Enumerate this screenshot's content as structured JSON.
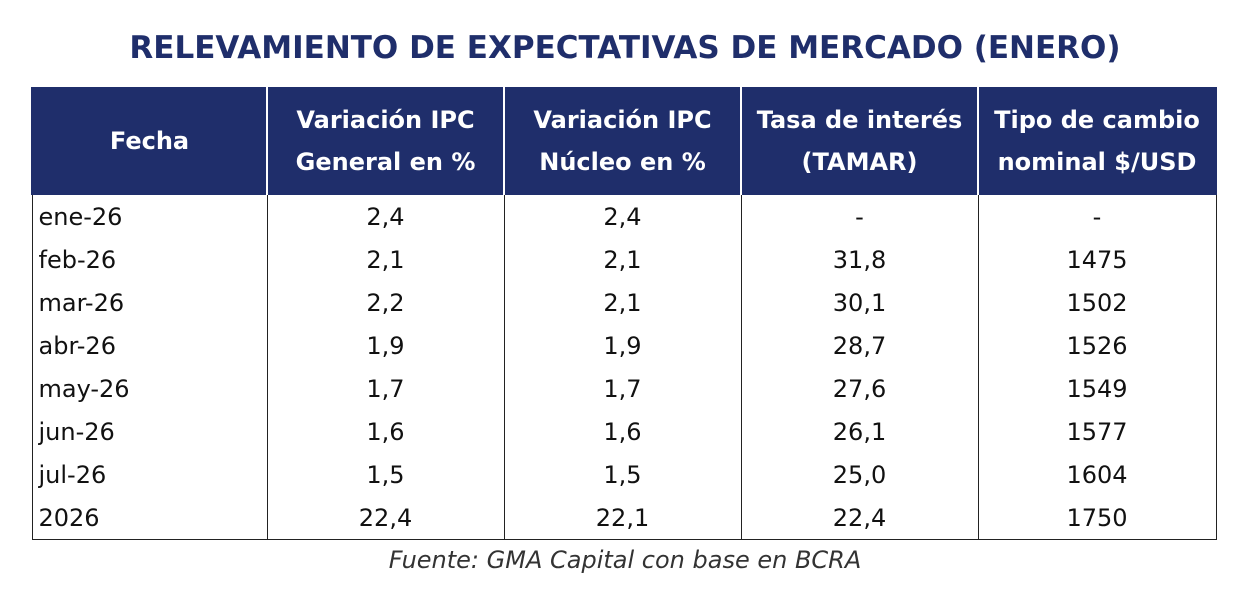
{
  "title": "RELEVAMIENTO DE EXPECTATIVAS DE MERCADO (ENERO)",
  "table": {
    "headers": [
      {
        "line1": "Fecha",
        "line2": ""
      },
      {
        "line1": "Variación IPC",
        "line2": "General en %"
      },
      {
        "line1": "Variación IPC",
        "line2": "Núcleo en %"
      },
      {
        "line1": "Tasa de interés",
        "line2": "(TAMAR)"
      },
      {
        "line1": "Tipo de cambio",
        "line2": "nominal $/USD"
      }
    ],
    "rows": [
      [
        "ene-26",
        "2,4",
        "2,4",
        "-",
        "-"
      ],
      [
        "feb-26",
        "2,1",
        "2,1",
        "31,8",
        "1475"
      ],
      [
        "mar-26",
        "2,2",
        "2,1",
        "30,1",
        "1502"
      ],
      [
        "abr-26",
        "1,9",
        "1,9",
        "28,7",
        "1526"
      ],
      [
        "may-26",
        "1,7",
        "1,7",
        "27,6",
        "1549"
      ],
      [
        "jun-26",
        "1,6",
        "1,6",
        "26,1",
        "1577"
      ],
      [
        "jul-26",
        "1,5",
        "1,5",
        "25,0",
        "1604"
      ],
      [
        "2026",
        "22,4",
        "22,1",
        "22,4",
        "1750"
      ]
    ]
  },
  "source": "Fuente: GMA Capital con base en BCRA",
  "colors": {
    "header_bg": "#1f2e6b",
    "title": "#1f2e6b"
  }
}
